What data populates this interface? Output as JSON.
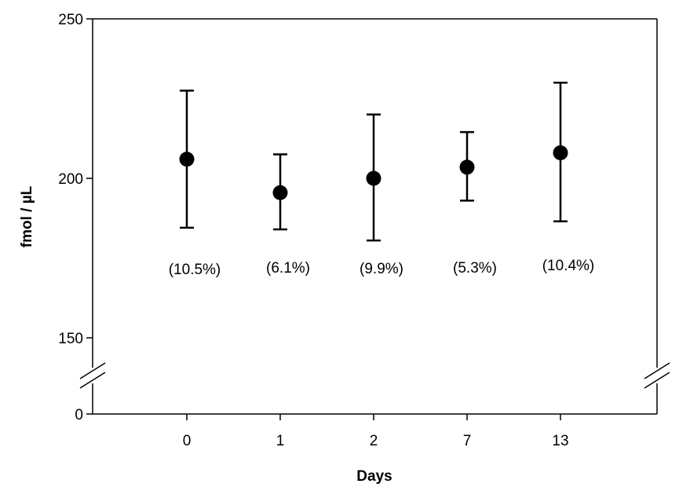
{
  "chart_data": {
    "type": "scatter",
    "title": "",
    "xlabel": "Days",
    "ylabel": "fmol / µL",
    "categories": [
      "0",
      "1",
      "2",
      "7",
      "13"
    ],
    "series": [
      {
        "values": [
          206,
          195.5,
          200,
          203.5,
          208
        ],
        "error_upper": [
          227.5,
          207.5,
          220,
          214.5,
          230
        ],
        "error_lower": [
          184.5,
          184,
          180.5,
          193,
          186.5
        ],
        "labels": [
          "(10.5%)",
          "(6.1%)",
          "(9.9%)",
          "(5.3%)",
          "(10.4%)"
        ]
      }
    ],
    "y_ticks": [
      {
        "value": 0,
        "label": "0"
      },
      {
        "value": 150,
        "label": "150"
      },
      {
        "value": 200,
        "label": "200"
      },
      {
        "value": 250,
        "label": "250"
      }
    ],
    "ylim": [
      0,
      250
    ],
    "y_axis_break": [
      0,
      150
    ],
    "grid": false,
    "legend": "none",
    "marker_color": "#000000"
  }
}
